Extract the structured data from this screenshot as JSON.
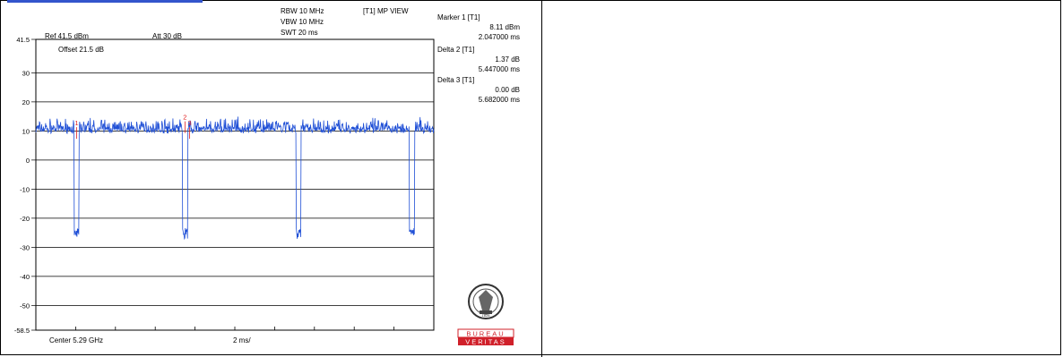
{
  "header": {
    "rbw": "RBW 10 MHz",
    "vbw": "VBW 10 MHz",
    "swt": "SWT 20 ms",
    "view": "[T1] MP VIEW",
    "ref": "Ref 41.5 dBm",
    "att": "Att 30 dB",
    "offset": "Offset 21.5 dB"
  },
  "markers": {
    "m1_title": "Marker 1 [T1]",
    "m1_value": "8.11 dBm",
    "m1_time": "2.047000 ms",
    "d2_title": "Delta 2 [T1]",
    "d2_value": "1.37 dB",
    "d2_time": "5.447000 ms",
    "d3_title": "Delta 3 [T1]",
    "d3_value": "0.00 dB",
    "d3_time": "5.682000 ms"
  },
  "footer": {
    "center": "Center 5.29 GHz",
    "span": "2 ms/"
  },
  "logo": {
    "line1": "BUREAU",
    "line2": "VERITAS",
    "year": "1828",
    "brand_red": "#d0202a"
  },
  "chart_data": {
    "type": "line",
    "title": "",
    "xlabel": "",
    "ylabel": "",
    "trace_color": "#1f4fd6",
    "ylim": [
      -58.5,
      41.5
    ],
    "y_tick_labels": [
      "41.5",
      "30",
      "20",
      "10",
      "0",
      "-10",
      "-20",
      "-30",
      "-40",
      "-50",
      "-58.5"
    ],
    "y_tick_values": [
      41.5,
      30,
      20,
      10,
      0,
      -10,
      -20,
      -30,
      -40,
      -50,
      -58.5
    ],
    "xlim": [
      0,
      20
    ],
    "x_unit": "ms",
    "baseline_level_dBm": 10,
    "noise_range_dB": [
      7,
      14
    ],
    "dip_level_dBm": -26,
    "dips_ms": [
      2.05,
      7.5,
      13.2,
      18.9
    ],
    "dip_width_ms": 0.25,
    "marker_labels": [
      {
        "label": "1",
        "x_ms": 2.047,
        "y": 11
      },
      {
        "label": "2",
        "x_ms": 7.494,
        "y": 13
      },
      {
        "label": "3",
        "x_ms": 7.729,
        "y": 11
      }
    ],
    "grid": true
  }
}
